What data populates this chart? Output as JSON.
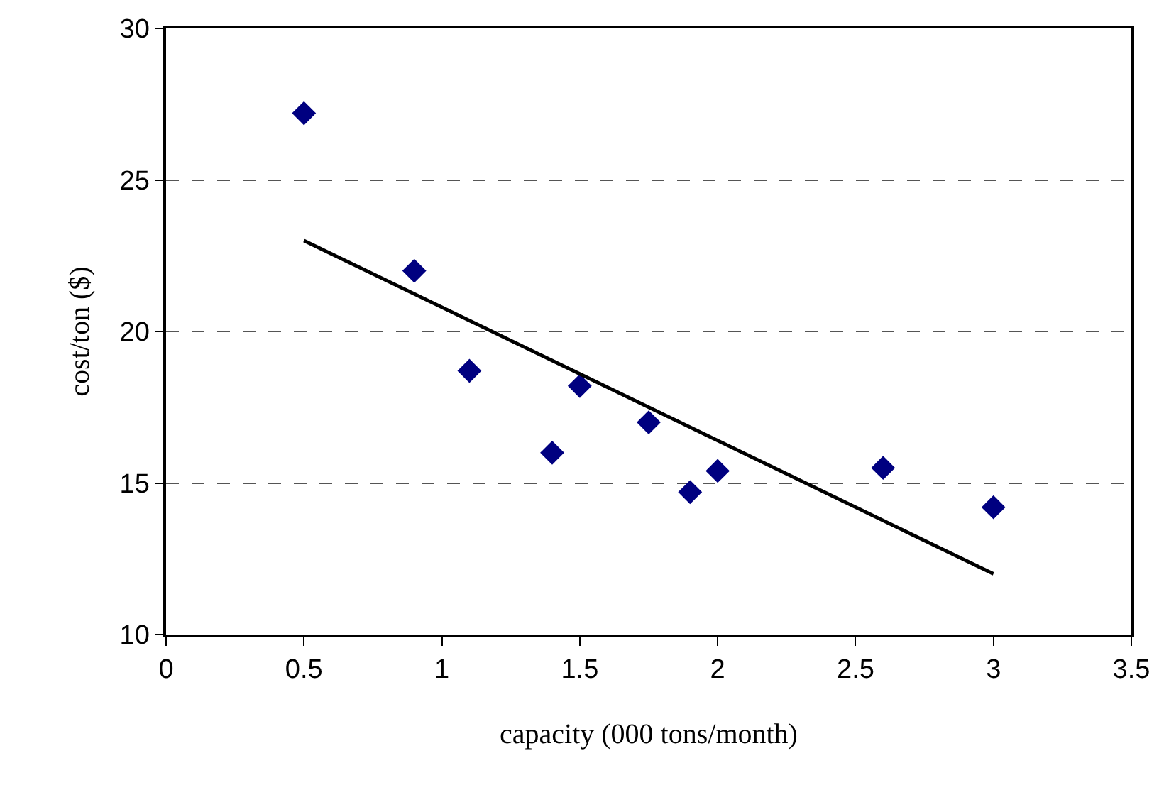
{
  "chart_data": {
    "type": "scatter",
    "xlabel": "capacity (000 tons/month)",
    "ylabel": "cost/ton ($)",
    "xlim": [
      0,
      3.5
    ],
    "xticks": [
      0,
      0.5,
      1,
      1.5,
      2,
      2.5,
      3,
      3.5
    ],
    "ylim": [
      10,
      30
    ],
    "yticks": [
      10,
      15,
      20,
      25,
      30
    ],
    "grid": "y",
    "legend": false,
    "series": [
      {
        "marker": "diamond",
        "color": "#000080",
        "x": [
          0.5,
          0.9,
          1.1,
          1.4,
          1.5,
          1.75,
          1.9,
          2.0,
          2.6,
          3.0
        ],
        "values": [
          27.2,
          22.0,
          18.7,
          16.0,
          18.2,
          17.0,
          14.7,
          15.4,
          15.5,
          14.2
        ]
      },
      {
        "type": "line",
        "marker": "none",
        "color": "#000000",
        "line_style": "solid",
        "x": [
          0.5,
          3.0
        ],
        "values": [
          23.0,
          12.0
        ]
      }
    ]
  }
}
